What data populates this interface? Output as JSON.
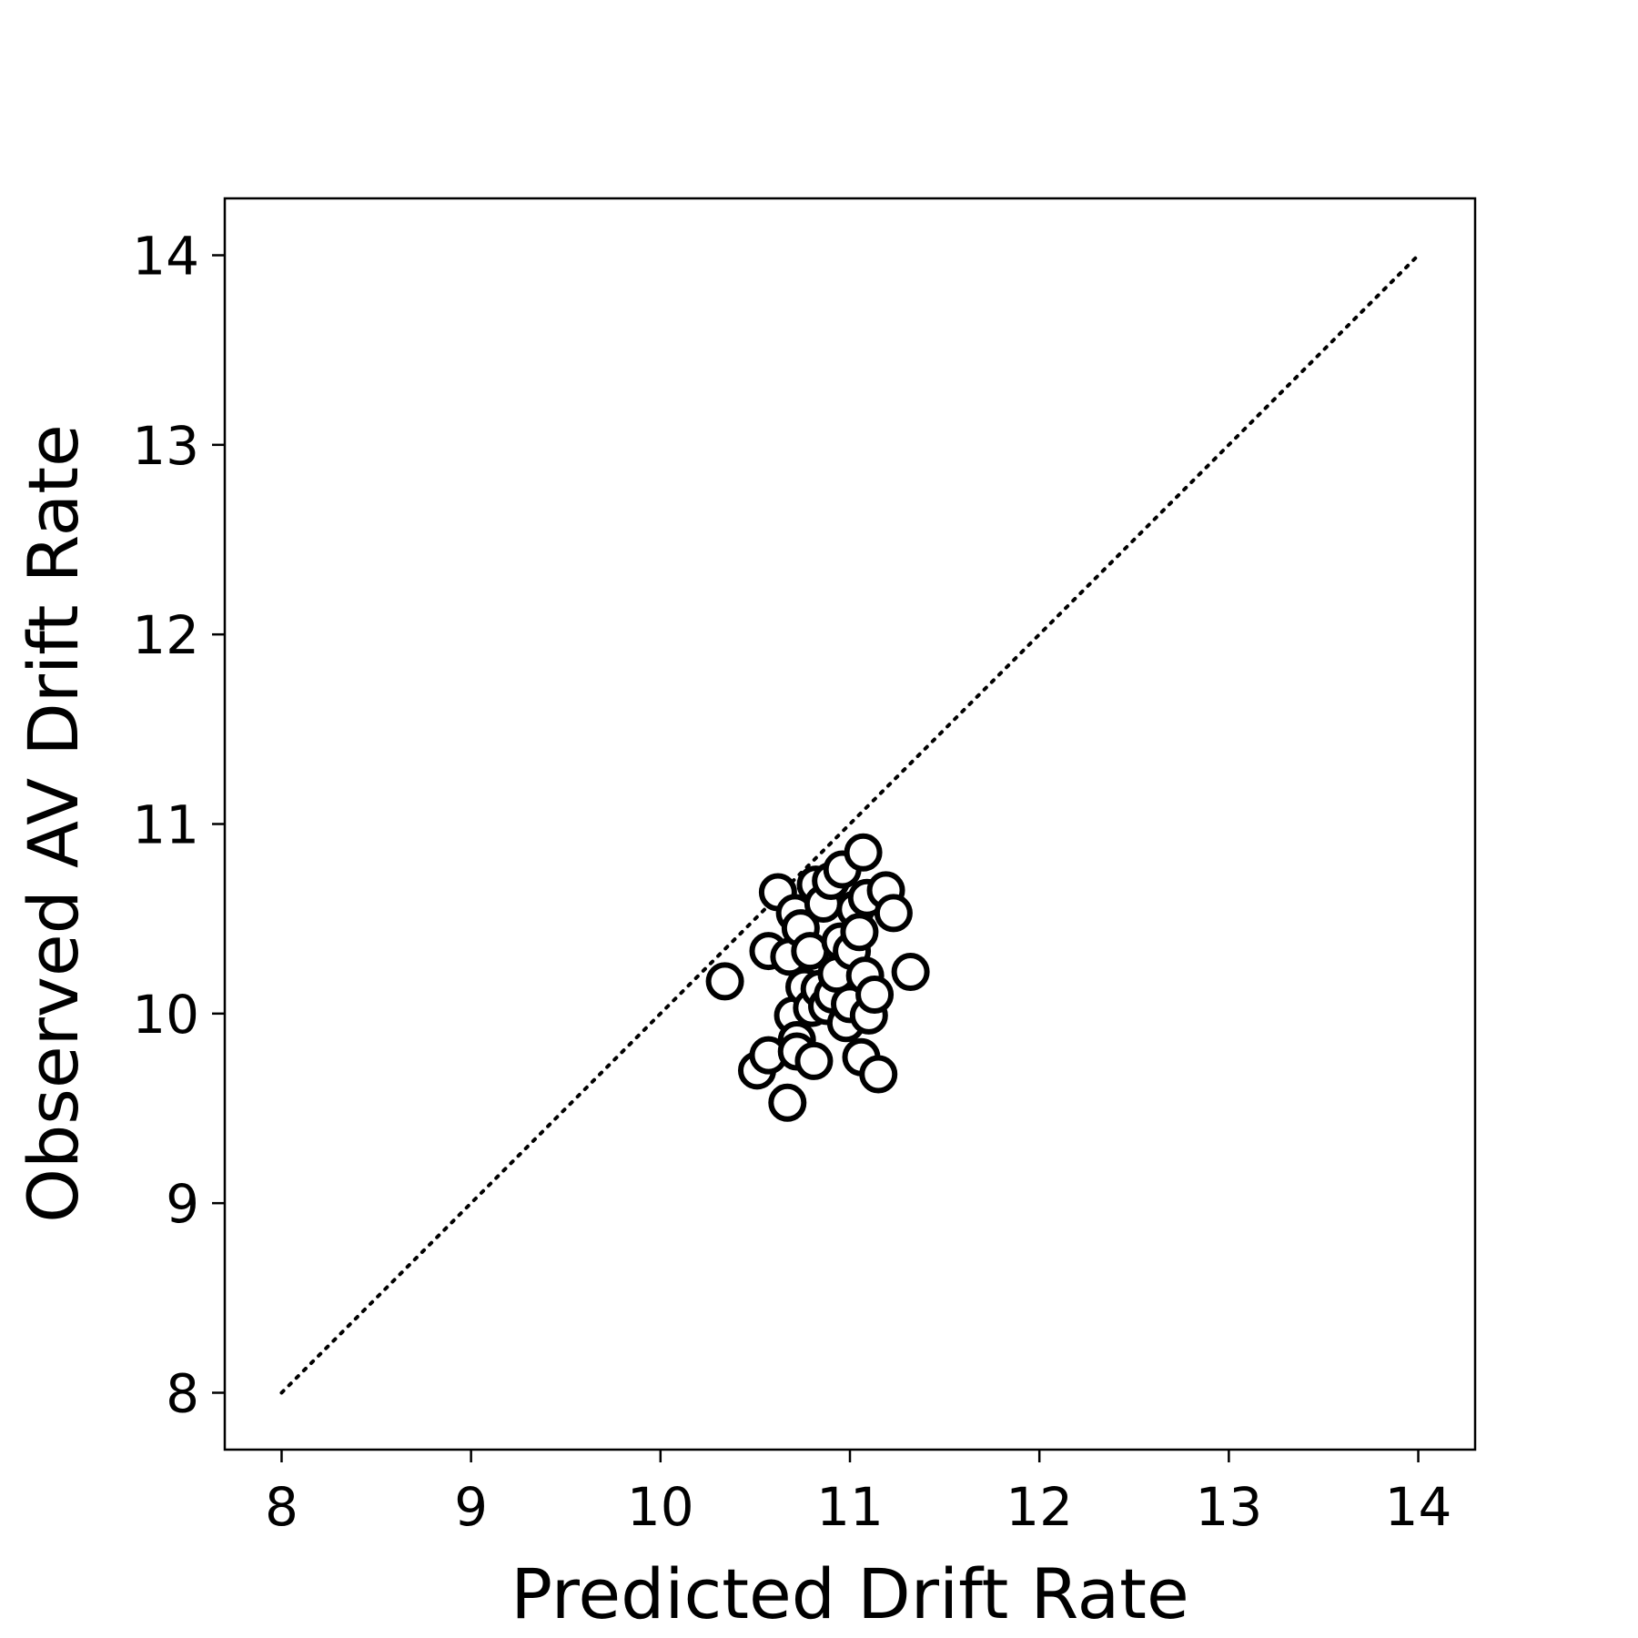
{
  "chart_data": {
    "type": "scatter",
    "title": "",
    "xlabel": "Predicted Drift Rate",
    "ylabel": "Observed AV Drift Rate",
    "xlim": [
      7.7,
      14.3
    ],
    "ylim": [
      7.7,
      14.3
    ],
    "xticks": [
      8,
      9,
      10,
      11,
      12,
      13,
      14
    ],
    "yticks": [
      8,
      9,
      10,
      11,
      12,
      13,
      14
    ],
    "grid": false,
    "legend": "none",
    "marker": {
      "shape": "circle",
      "fill": "#ffffff",
      "edge_color": "#000000"
    },
    "reference_line": {
      "style": "dotted",
      "color": "#000000",
      "from": [
        8,
        8
      ],
      "to": [
        14,
        14
      ]
    },
    "series": [
      {
        "points": [
          {
            "x": 10.34,
            "y": 10.17
          },
          {
            "x": 10.51,
            "y": 9.7
          },
          {
            "x": 10.57,
            "y": 9.78
          },
          {
            "x": 10.57,
            "y": 10.33
          },
          {
            "x": 10.62,
            "y": 10.64
          },
          {
            "x": 10.67,
            "y": 9.53
          },
          {
            "x": 10.68,
            "y": 10.3
          },
          {
            "x": 10.7,
            "y": 9.99
          },
          {
            "x": 10.71,
            "y": 10.53
          },
          {
            "x": 10.72,
            "y": 9.86
          },
          {
            "x": 10.72,
            "y": 9.8
          },
          {
            "x": 10.74,
            "y": 10.45
          },
          {
            "x": 10.76,
            "y": 10.14
          },
          {
            "x": 10.79,
            "y": 10.33
          },
          {
            "x": 10.8,
            "y": 10.03
          },
          {
            "x": 10.81,
            "y": 9.75
          },
          {
            "x": 10.82,
            "y": 10.68
          },
          {
            "x": 10.84,
            "y": 10.13
          },
          {
            "x": 10.86,
            "y": 10.58
          },
          {
            "x": 10.88,
            "y": 10.04
          },
          {
            "x": 10.9,
            "y": 10.7
          },
          {
            "x": 10.91,
            "y": 10.1
          },
          {
            "x": 10.93,
            "y": 10.21
          },
          {
            "x": 10.95,
            "y": 10.38
          },
          {
            "x": 10.96,
            "y": 10.76
          },
          {
            "x": 10.98,
            "y": 9.95
          },
          {
            "x": 11.0,
            "y": 10.05
          },
          {
            "x": 11.01,
            "y": 10.33
          },
          {
            "x": 11.03,
            "y": 10.55
          },
          {
            "x": 11.05,
            "y": 10.43
          },
          {
            "x": 11.06,
            "y": 9.77
          },
          {
            "x": 11.07,
            "y": 10.85
          },
          {
            "x": 11.08,
            "y": 10.2
          },
          {
            "x": 11.09,
            "y": 10.61
          },
          {
            "x": 11.1,
            "y": 9.99
          },
          {
            "x": 11.13,
            "y": 10.1
          },
          {
            "x": 11.15,
            "y": 9.68
          },
          {
            "x": 11.19,
            "y": 10.65
          },
          {
            "x": 11.23,
            "y": 10.53
          },
          {
            "x": 11.32,
            "y": 10.22
          }
        ]
      }
    ]
  }
}
